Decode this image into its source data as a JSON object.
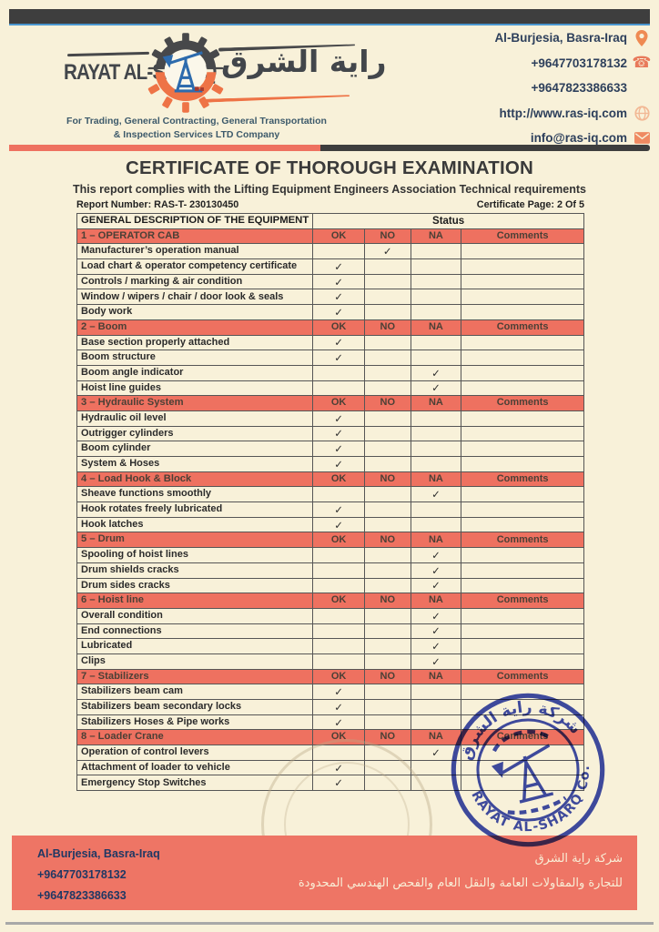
{
  "header": {
    "brand_en": "RAYAT AL-SHARQ",
    "brand_ar": "راية الشرق",
    "tagline_line1": "For Trading, General Contracting, General Transportation",
    "tagline_line2": "& Inspection Services LTD Company",
    "contact": [
      {
        "text": "Al-Burjesia, Basra-Iraq",
        "icon": "location-pin-icon"
      },
      {
        "text": "+9647703178132",
        "icon": "phone-icon"
      },
      {
        "text": "+9647823386633",
        "icon": null
      },
      {
        "text": "http://www.ras-iq.com",
        "icon": "globe-icon"
      },
      {
        "text": "info@ras-iq.com",
        "icon": "envelope-icon"
      }
    ]
  },
  "title": "CERTIFICATE OF THOROUGH EXAMINATION",
  "subtitle": "This report complies with the Lifting Equipment Engineers Association Technical requirements",
  "report_number_label": "Report Number: RAS-T- 230130450",
  "certificate_page_label": "Certificate Page: 2 Of 5",
  "table": {
    "main_header": "GENERAL DESCRIPTION OF THE EQUIPMENT",
    "status_header": "Status",
    "columns": [
      "OK",
      "NO",
      "NA",
      "Comments"
    ],
    "check_mark": "✓",
    "sections": [
      {
        "title": "1 – OPERATOR CAB",
        "rows": [
          {
            "label": "Manufacturer’s operation manual",
            "check": "NO"
          },
          {
            "label": "Load chart & operator competency certificate",
            "check": "OK"
          },
          {
            "label": "Controls / marking & air condition",
            "check": "OK"
          },
          {
            "label": "Window / wipers / chair / door look & seals",
            "check": "OK"
          },
          {
            "label": "Body work",
            "check": "OK"
          }
        ]
      },
      {
        "title": "2 – Boom",
        "rows": [
          {
            "label": "Base section properly attached",
            "check": "OK"
          },
          {
            "label": "Boom structure",
            "check": "OK"
          },
          {
            "label": "Boom angle indicator",
            "check": "NA"
          },
          {
            "label": "Hoist line guides",
            "check": "NA"
          }
        ]
      },
      {
        "title": "3 – Hydraulic System",
        "rows": [
          {
            "label": "Hydraulic oil level",
            "check": "OK"
          },
          {
            "label": "Outrigger cylinders",
            "check": "OK"
          },
          {
            "label": "Boom cylinder",
            "check": "OK"
          },
          {
            "label": "System & Hoses",
            "check": "OK"
          }
        ]
      },
      {
        "title": "4 – Load Hook & Block",
        "rows": [
          {
            "label": "Sheave functions smoothly",
            "check": "NA"
          },
          {
            "label": "Hook rotates freely lubricated",
            "check": "OK"
          },
          {
            "label": "Hook latches",
            "check": "OK"
          }
        ]
      },
      {
        "title": "5 – Drum",
        "rows": [
          {
            "label": "Spooling of hoist lines",
            "check": "NA"
          },
          {
            "label": "Drum shields cracks",
            "check": "NA"
          },
          {
            "label": "Drum sides cracks",
            "check": "NA"
          }
        ]
      },
      {
        "title": "6 – Hoist line",
        "rows": [
          {
            "label": "Overall condition",
            "check": "NA"
          },
          {
            "label": "End connections",
            "check": "NA"
          },
          {
            "label": "Lubricated",
            "check": "NA"
          },
          {
            "label": "Clips",
            "check": "NA"
          }
        ]
      },
      {
        "title": "7 – Stabilizers",
        "rows": [
          {
            "label": "Stabilizers beam cam",
            "check": "OK"
          },
          {
            "label": "Stabilizers beam secondary locks",
            "check": "OK"
          },
          {
            "label": "Stabilizers Hoses & Pipe works",
            "check": "OK"
          }
        ]
      },
      {
        "title": "8 – Loader Crane",
        "rows": [
          {
            "label": "Operation of control levers",
            "check": "NA"
          },
          {
            "label": "Attachment of loader to vehicle",
            "check": "OK"
          },
          {
            "label": "Emergency Stop Switches",
            "check": "OK"
          }
        ]
      }
    ]
  },
  "stamp": {
    "top_text_ar": "شركة راية الشرق",
    "bottom_text": "RAYAT AL-SHARQ Co."
  },
  "footer": {
    "address": "Al-Burjesia, Basra-Iraq",
    "phone1": "+9647703178132",
    "phone2": "+9647823386633",
    "company_ar_line1": "شركة راية الشرق",
    "company_ar_line2": "للتجارة والمقاولات العامة والنقل العام والفحص الهندسي المحدودة"
  },
  "colors": {
    "page_background": "#f8f1d9",
    "salmon_accent": "#ee7160",
    "dark_bar": "#3e3e3e",
    "blue_underline": "#4a96cf",
    "navy_text": "#2e405c",
    "icon_orange": "#ef8a62",
    "logo_orange": "#ee7346",
    "logo_dark": "#47484a",
    "pump_blue": "#2d6bad",
    "stamp_blue": "#2e3eb0"
  }
}
